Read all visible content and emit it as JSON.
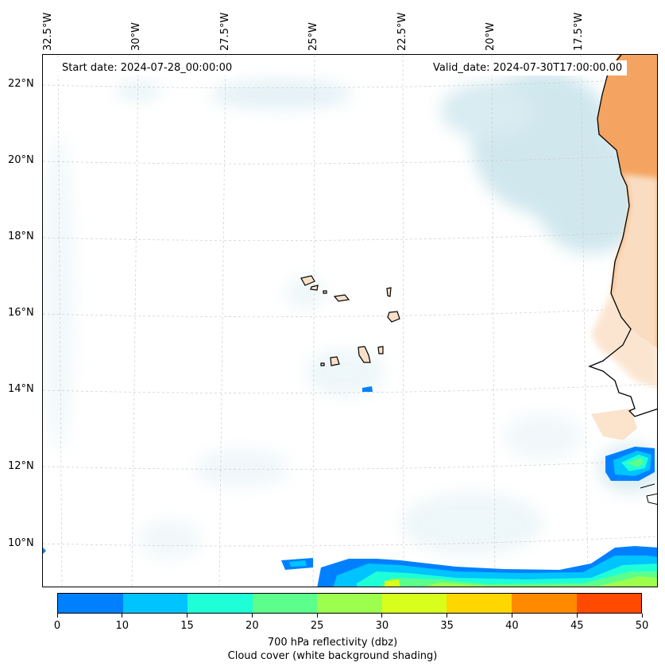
{
  "start_date": "Start date: 2024-07-28_00:00:00",
  "valid_date": "Valid_date: 2024-07-30T17:00:00.00",
  "lat_labels": [
    "22°N",
    "20°N",
    "18°N",
    "16°N",
    "14°N",
    "12°N",
    "10°N"
  ],
  "lon_labels": [
    "32.5°W",
    "30°W",
    "27.5°W",
    "25°W",
    "22.5°W",
    "20°W",
    "17.5°W"
  ],
  "colorbar": {
    "ticks": [
      "0",
      "10",
      "15",
      "20",
      "25",
      "30",
      "35",
      "40",
      "45",
      "50"
    ],
    "colors": [
      "#0080ff",
      "#00c4ff",
      "#1effd8",
      "#5cff8c",
      "#9cff4e",
      "#d8ff1c",
      "#ffd600",
      "#ff8a00",
      "#ff4a00"
    ],
    "title": "700 hPa reflectivity (dbz)",
    "subtitle": "Cloud cover (white background shading)"
  },
  "colors": {
    "land": "#f4a460",
    "land_light": "#fbe3cc",
    "cloud": "#a9d4e0",
    "coast": "#000000"
  }
}
